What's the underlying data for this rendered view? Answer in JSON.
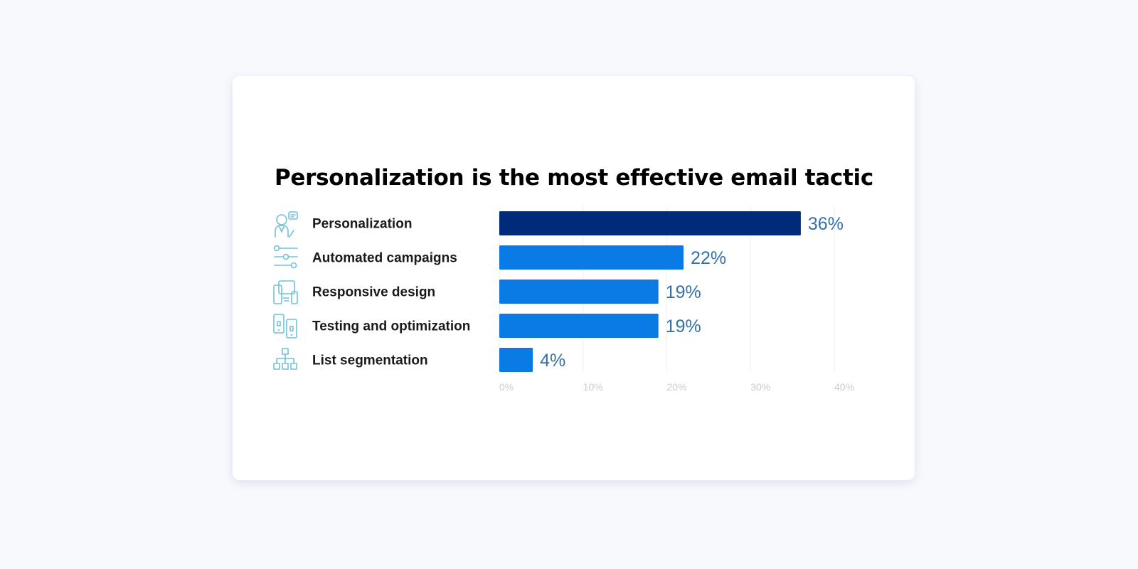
{
  "chart_data": {
    "type": "bar",
    "orientation": "horizontal",
    "title": "Personalization is the most effective email tactic",
    "categories": [
      "Personalization",
      "Automated campaigns",
      "Responsive design",
      "Testing and optimization",
      "List segmentation"
    ],
    "values": [
      36,
      22,
      19,
      19,
      4
    ],
    "value_labels": [
      "36%",
      "22%",
      "19%",
      "19%",
      "4%"
    ],
    "xlim": [
      0,
      40
    ],
    "x_ticks": [
      0,
      10,
      20,
      30,
      40
    ],
    "x_tick_labels": [
      "0%",
      "10%",
      "20%",
      "30%",
      "40%"
    ],
    "grid": true,
    "icons": [
      "person-chat-icon",
      "sliders-icon",
      "devices-icon",
      "phones-icon",
      "org-chart-icon"
    ],
    "colors": {
      "highlight_bar": "#002a7a",
      "bar": "#0a7be5",
      "value_label": "#3570a6",
      "icon": "#6fc3d8",
      "grid": "#eef0f3",
      "tick_label": "#c8ccd2"
    }
  }
}
